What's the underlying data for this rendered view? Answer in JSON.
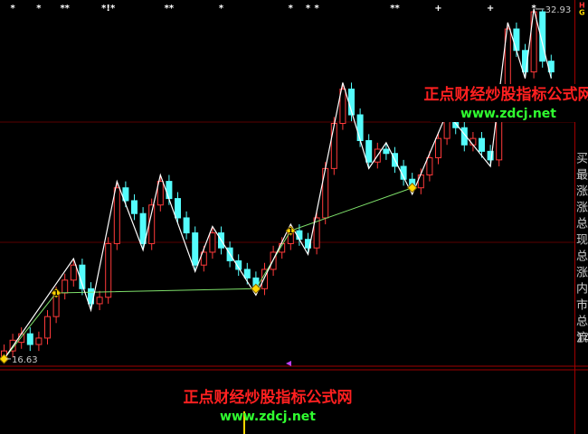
{
  "chart_data": {
    "type": "candlestick",
    "ylim": [
      16.29,
      33.35
    ],
    "up_color": "#ff3a3a",
    "down_color": "#54fcfc",
    "open": [
      16.7,
      17.0,
      17.4,
      17.8,
      17.3,
      17.6,
      18.6,
      19.7,
      20.3,
      21.0,
      19.9,
      19.2,
      19.5,
      22.0,
      24.6,
      24.0,
      23.4,
      22.0,
      23.8,
      24.9,
      24.1,
      23.2,
      22.5,
      21.0,
      21.6,
      22.5,
      21.8,
      21.2,
      20.8,
      20.4,
      19.9,
      20.8,
      21.6,
      22.0,
      22.6,
      22.2,
      21.8,
      23.2,
      25.5,
      27.6,
      29.2,
      28.0,
      26.8,
      25.8,
      26.4,
      26.2,
      25.6,
      25.0,
      24.6,
      25.2,
      26.0,
      26.9,
      27.8,
      27.4,
      26.6,
      26.9,
      26.3,
      25.9,
      28.5,
      32.0,
      31.0,
      30.0,
      32.8,
      30.5
    ],
    "close": [
      17.0,
      17.5,
      17.8,
      17.3,
      17.6,
      18.6,
      19.7,
      20.3,
      21.0,
      19.9,
      19.2,
      19.5,
      22.0,
      24.6,
      24.0,
      23.4,
      22.0,
      23.8,
      24.9,
      24.1,
      23.2,
      22.5,
      21.0,
      21.6,
      22.5,
      21.8,
      21.2,
      20.8,
      20.4,
      19.9,
      20.8,
      21.6,
      22.0,
      22.6,
      22.2,
      21.8,
      23.2,
      25.5,
      27.6,
      29.2,
      28.0,
      26.8,
      25.8,
      26.4,
      26.2,
      25.6,
      25.0,
      24.6,
      25.2,
      26.0,
      26.9,
      27.8,
      27.4,
      26.6,
      26.9,
      26.3,
      25.9,
      28.5,
      32.0,
      31.0,
      30.0,
      32.8,
      30.5,
      30.0
    ],
    "high": [
      17.3,
      17.8,
      18.1,
      18.1,
      17.9,
      18.9,
      20.0,
      20.6,
      21.3,
      21.3,
      20.2,
      19.8,
      22.3,
      24.9,
      24.9,
      24.3,
      23.7,
      24.1,
      25.2,
      25.2,
      24.4,
      23.5,
      22.8,
      21.9,
      22.8,
      22.8,
      22.1,
      21.5,
      21.1,
      20.7,
      21.1,
      21.9,
      22.3,
      22.9,
      22.9,
      22.5,
      23.5,
      25.8,
      27.9,
      29.5,
      29.5,
      28.3,
      27.1,
      26.7,
      26.7,
      26.5,
      25.9,
      25.3,
      25.5,
      26.3,
      27.2,
      28.1,
      28.1,
      27.7,
      27.2,
      27.2,
      26.6,
      28.8,
      32.3,
      32.3,
      31.3,
      32.93,
      32.9,
      30.8
    ],
    "low": [
      16.63,
      16.7,
      17.1,
      17.0,
      17.0,
      17.3,
      18.3,
      19.4,
      20.0,
      19.6,
      18.9,
      18.9,
      19.2,
      21.7,
      23.7,
      23.1,
      21.7,
      21.7,
      23.5,
      23.8,
      22.9,
      22.2,
      20.7,
      20.7,
      21.3,
      21.5,
      20.9,
      20.5,
      20.1,
      19.6,
      19.6,
      20.5,
      21.3,
      21.7,
      21.9,
      21.5,
      21.5,
      22.9,
      25.2,
      27.3,
      27.7,
      26.5,
      25.5,
      25.5,
      25.9,
      25.3,
      24.7,
      24.3,
      24.3,
      24.9,
      25.7,
      26.6,
      27.1,
      26.3,
      26.3,
      26.0,
      25.6,
      25.6,
      28.2,
      30.7,
      29.7,
      29.7,
      30.2,
      29.7
    ],
    "zigzag": {
      "color": "#ffffff",
      "x": [
        0,
        8,
        10,
        13,
        16,
        18,
        22,
        24,
        29,
        33,
        35,
        39,
        42,
        44,
        47,
        51,
        56,
        58,
        60,
        61,
        63
      ],
      "values": [
        16.63,
        21.3,
        18.9,
        24.9,
        21.7,
        25.2,
        20.7,
        22.8,
        19.6,
        22.9,
        21.5,
        29.5,
        25.5,
        26.7,
        24.3,
        28.1,
        25.6,
        32.3,
        29.7,
        32.93,
        29.7
      ]
    },
    "support": {
      "color": "#7ee06a",
      "x": [
        0,
        6,
        29,
        33,
        47
      ],
      "values": [
        16.63,
        19.7,
        19.9,
        22.6,
        24.6
      ]
    },
    "markers": [
      {
        "x": 0,
        "value": 16.63
      },
      {
        "x": 6,
        "value": 19.7,
        "label": "1"
      },
      {
        "x": 29,
        "value": 19.9
      },
      {
        "x": 33,
        "value": 22.6,
        "label": "1"
      },
      {
        "x": 47,
        "value": 24.6
      }
    ],
    "top_marks": [
      {
        "x": 1,
        "label": "*"
      },
      {
        "x": 4,
        "label": "*"
      },
      {
        "x": 7,
        "label": "**"
      },
      {
        "x": 12,
        "label": "*!*"
      },
      {
        "x": 19,
        "label": "**"
      },
      {
        "x": 25,
        "label": "*"
      },
      {
        "x": 33,
        "label": "*"
      },
      {
        "x": 35,
        "label": "*"
      },
      {
        "x": 36,
        "label": "*"
      },
      {
        "x": 45,
        "label": "**"
      },
      {
        "x": 50,
        "label": "+"
      },
      {
        "x": 56,
        "label": "+"
      },
      {
        "x": 61,
        "label": "*"
      }
    ],
    "side_labels": [
      "买",
      "最",
      "涨",
      "涨",
      "总",
      "现",
      "总",
      "涨",
      "内",
      "市",
      "总",
      "流"
    ],
    "side_number": "14",
    "corner_marks": [
      "H",
      "G"
    ],
    "watermark": {
      "title": "正点财经炒股指标公式网",
      "url": "www.zdcj.net"
    }
  }
}
